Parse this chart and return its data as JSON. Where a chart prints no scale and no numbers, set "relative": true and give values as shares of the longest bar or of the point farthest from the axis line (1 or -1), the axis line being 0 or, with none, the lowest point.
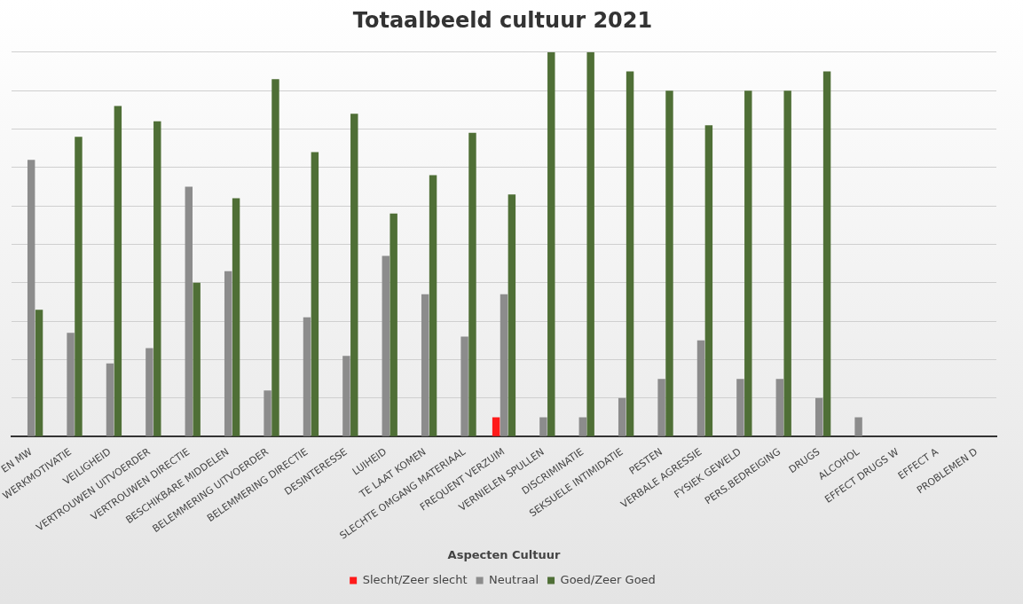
{
  "chart_data": {
    "type": "bar",
    "title": "Totaalbeeld cultuur 2021",
    "xlabel": "Aspecten Cultuur",
    "relative": true,
    "grid": "y",
    "legend": "bottom",
    "categories": [
      "EN MW",
      "WERKMOTIVATIE",
      "VEILIGHEID",
      "VERTROUWEN UITVOERDER",
      "VERTROUWEN DIRECTIE",
      "BESCHIKBARE MIDDELEN",
      "BELEMMERING UITVOERDER",
      "BELEMMERING DIRECTIE",
      "DESINTERESSE",
      "LUIHEID",
      "TE LAAT KOMEN",
      "SLECHTE OMGANG MATERIAAL",
      "FREQUENT VERZUIM",
      "VERNIELEN SPULLEN",
      "DISCRIMINATIE",
      "SEKSUELE INTIMIDATIE",
      "PESTEN",
      "VERBALE AGRESSIE",
      "FYSIEK GEWELD",
      "PERS.BEDREIGING",
      "DRUGS",
      "ALCOHOL",
      "EFFECT DRUGS W",
      "EFFECT A",
      "PROBLEMEN D"
    ],
    "series": [
      {
        "name": "Slecht/Zeer slecht",
        "color": "#ff1a1a",
        "values": [
          null,
          null,
          null,
          null,
          null,
          null,
          null,
          null,
          null,
          null,
          null,
          null,
          0.05,
          null,
          null,
          null,
          null,
          null,
          null,
          null,
          null,
          null,
          null,
          null,
          null
        ]
      },
      {
        "name": "Neutraal",
        "color": "#8c8c8c",
        "values": [
          0.72,
          0.27,
          0.19,
          0.23,
          0.65,
          0.43,
          0.12,
          0.31,
          0.21,
          0.47,
          0.37,
          0.26,
          0.37,
          0.05,
          0.05,
          0.1,
          0.15,
          0.25,
          0.15,
          0.15,
          0.1,
          0.05,
          null,
          null,
          null
        ]
      },
      {
        "name": "Goed/Zeer Goed",
        "color": "#4f6f36",
        "values": [
          0.33,
          0.78,
          0.86,
          0.82,
          0.4,
          0.62,
          0.93,
          0.74,
          0.84,
          0.58,
          0.68,
          0.79,
          0.63,
          1,
          1,
          0.95,
          0.9,
          0.81,
          0.9,
          0.9,
          0.95,
          null,
          null,
          null,
          null
        ]
      }
    ]
  }
}
